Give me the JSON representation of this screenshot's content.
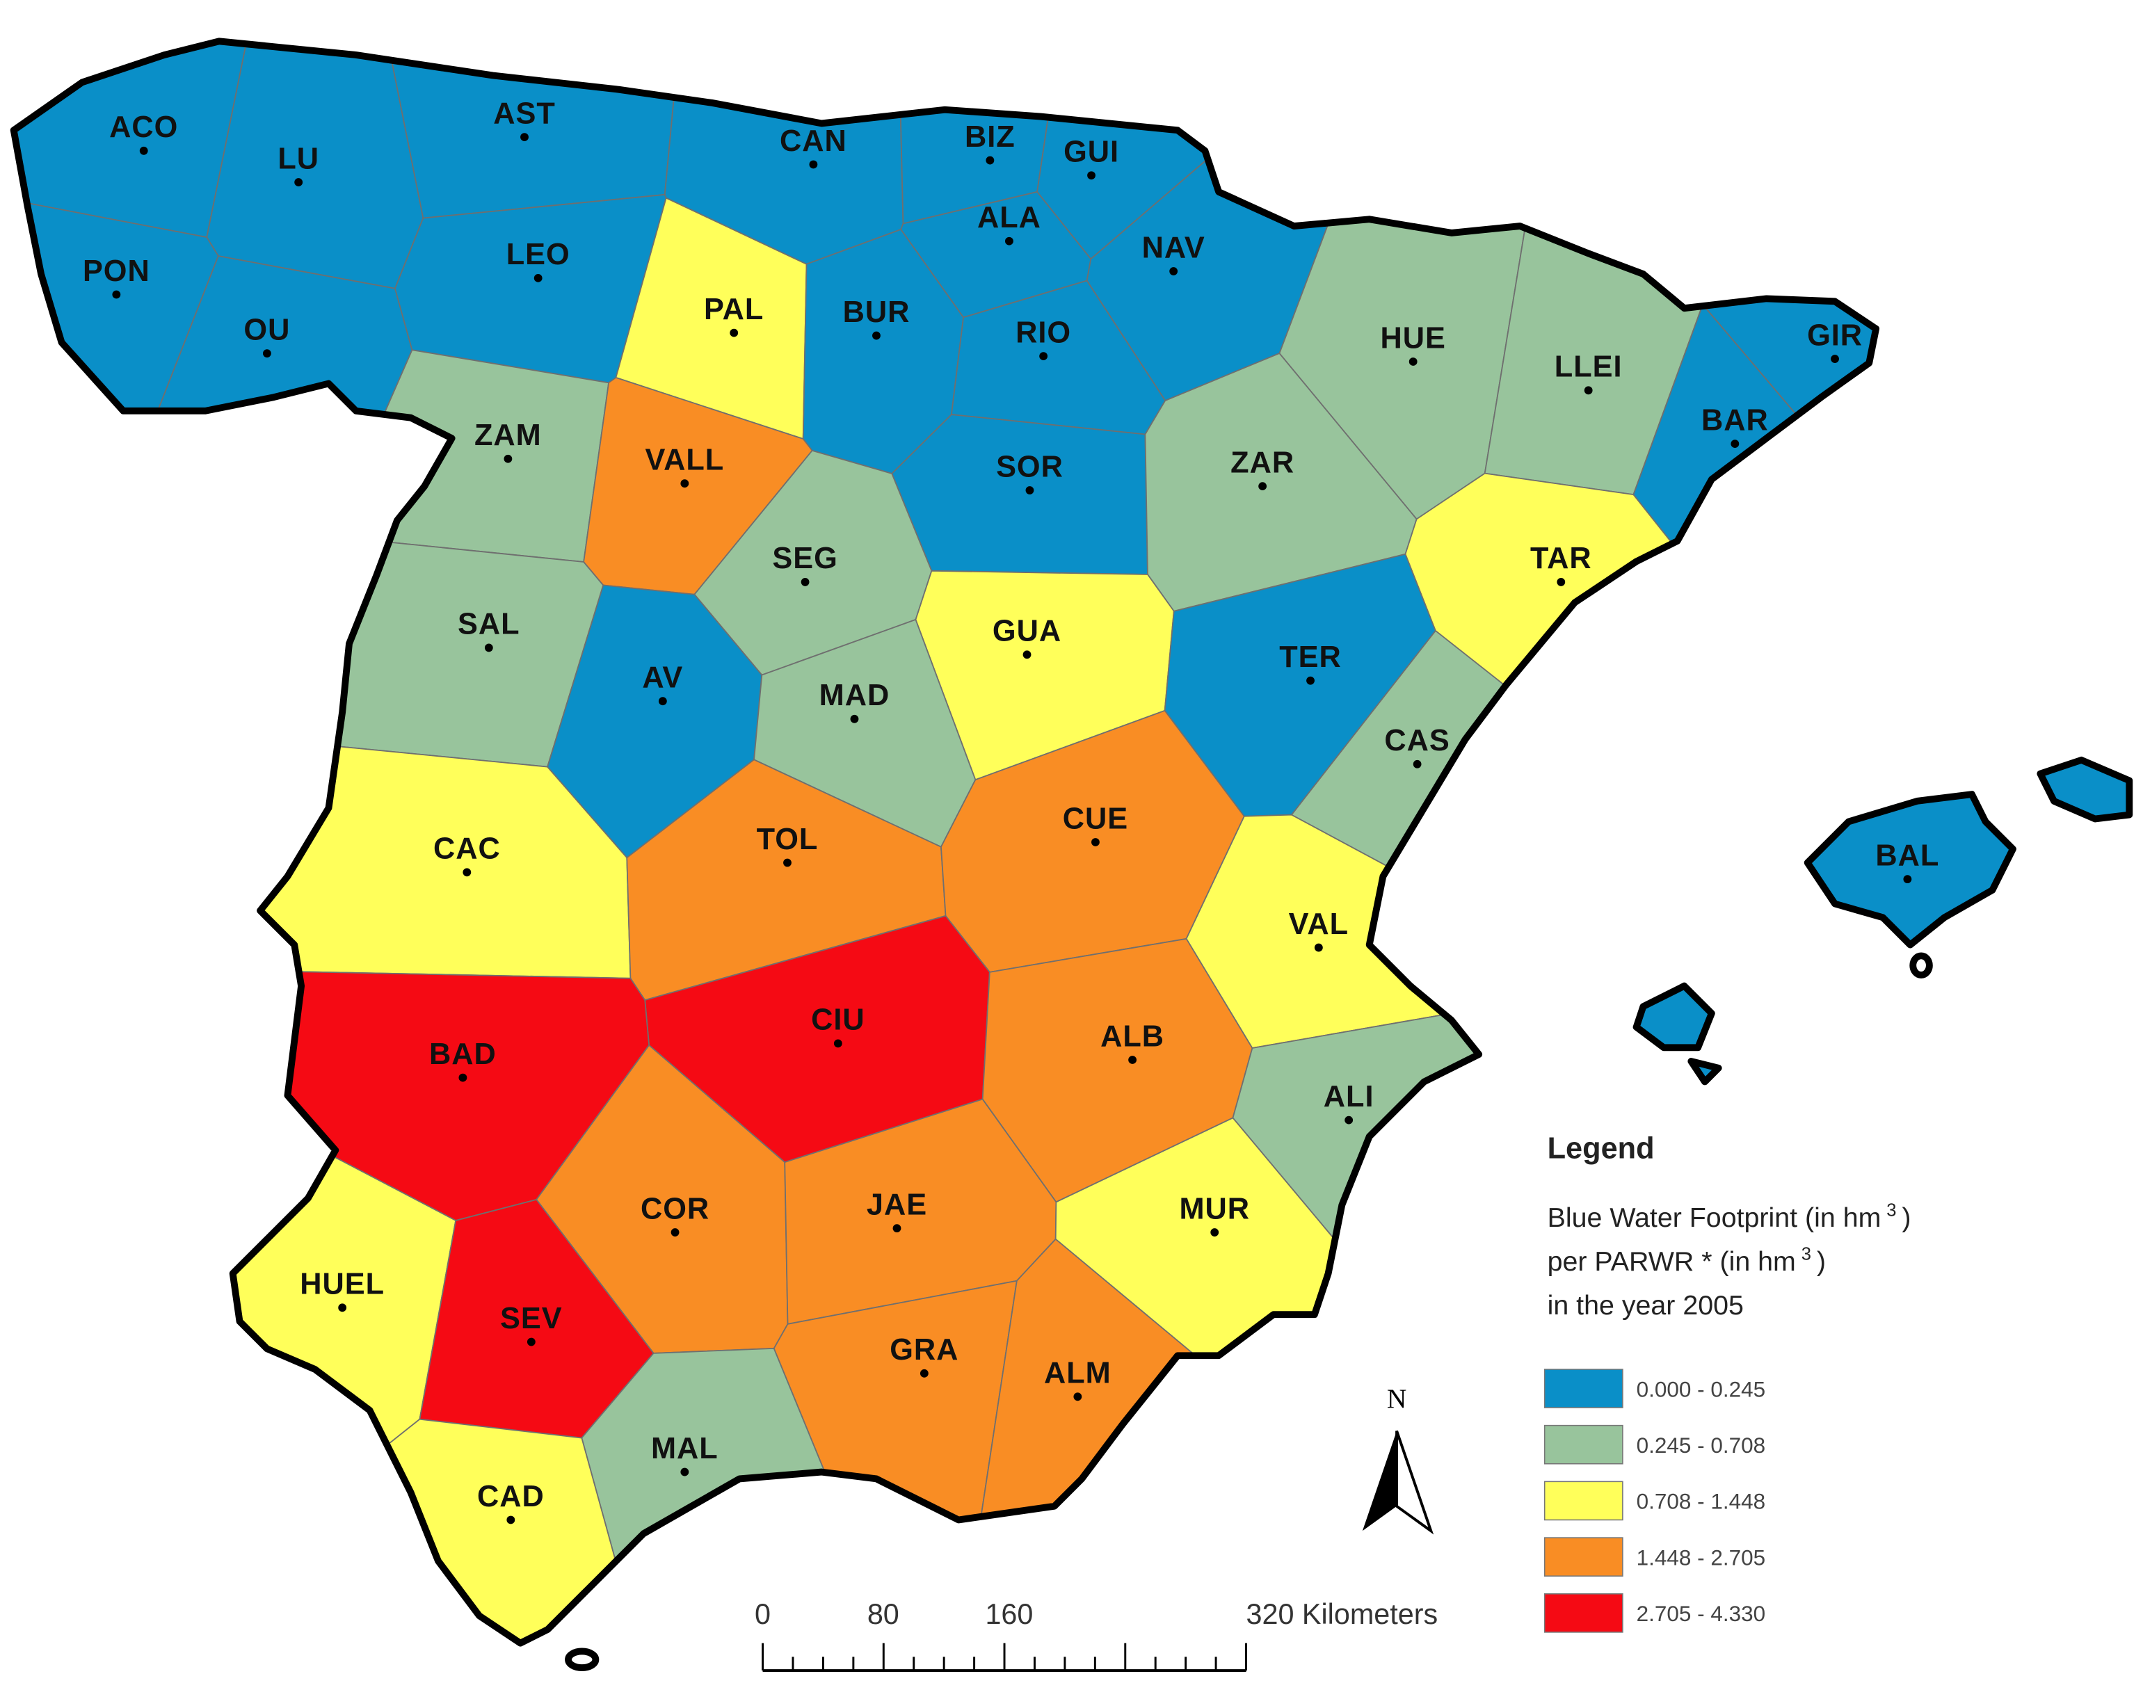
{
  "map": {
    "provinces": [
      {
        "label": "ACO",
        "class": 0
      },
      {
        "label": "LU",
        "class": 0
      },
      {
        "label": "AST",
        "class": 0
      },
      {
        "label": "CAN",
        "class": 0
      },
      {
        "label": "BIZ",
        "class": 0
      },
      {
        "label": "GUI",
        "class": 0
      },
      {
        "label": "ALA",
        "class": 0
      },
      {
        "label": "NAV",
        "class": 0
      },
      {
        "label": "PON",
        "class": 0
      },
      {
        "label": "OU",
        "class": 0
      },
      {
        "label": "LEO",
        "class": 0
      },
      {
        "label": "PAL",
        "class": 2
      },
      {
        "label": "BUR",
        "class": 0
      },
      {
        "label": "RIO",
        "class": 0
      },
      {
        "label": "HUE",
        "class": 1
      },
      {
        "label": "LLEI",
        "class": 1
      },
      {
        "label": "GIR",
        "class": 0
      },
      {
        "label": "BAR",
        "class": 0
      },
      {
        "label": "ZAM",
        "class": 1
      },
      {
        "label": "VALL",
        "class": 3
      },
      {
        "label": "SOR",
        "class": 0
      },
      {
        "label": "ZAR",
        "class": 1
      },
      {
        "label": "TAR",
        "class": 2
      },
      {
        "label": "SEG",
        "class": 1
      },
      {
        "label": "GUA",
        "class": 2
      },
      {
        "label": "SAL",
        "class": 1
      },
      {
        "label": "AV",
        "class": 0
      },
      {
        "label": "TER",
        "class": 0
      },
      {
        "label": "MAD",
        "class": 1
      },
      {
        "label": "CAS",
        "class": 1
      },
      {
        "label": "BAL",
        "class": 0
      },
      {
        "label": "CAC",
        "class": 2
      },
      {
        "label": "TOL",
        "class": 3
      },
      {
        "label": "CUE",
        "class": 3
      },
      {
        "label": "VAL",
        "class": 2
      },
      {
        "label": "CIU",
        "class": 4
      },
      {
        "label": "BAD",
        "class": 4
      },
      {
        "label": "ALB",
        "class": 3
      },
      {
        "label": "ALI",
        "class": 1
      },
      {
        "label": "COR",
        "class": 3
      },
      {
        "label": "JAE",
        "class": 3
      },
      {
        "label": "MUR",
        "class": 2
      },
      {
        "label": "HUEL",
        "class": 2
      },
      {
        "label": "SEV",
        "class": 4
      },
      {
        "label": "GRA",
        "class": 3
      },
      {
        "label": "ALM",
        "class": 3
      },
      {
        "label": "MAL",
        "class": 1
      },
      {
        "label": "CAD",
        "class": 2
      }
    ],
    "legend": {
      "title": "Legend",
      "lines": [
        {
          "text": "Blue Water Footprint (in hm",
          "sup": "3",
          "after": ")"
        },
        {
          "text": "per   PARWR  *  (in hm",
          "sup": "3",
          "after": ")"
        },
        {
          "text": "in the year 2005"
        }
      ],
      "items": [
        {
          "label": "0.000 - 0.245",
          "color": "#0a8fc8"
        },
        {
          "label": "0.245 - 0.708",
          "color": "#98c49c"
        },
        {
          "label": "0.708 - 1.448",
          "color": "#ffff5a"
        },
        {
          "label": "1.448 - 2.705",
          "color": "#f98d24"
        },
        {
          "label": "2.705 - 4.330",
          "color": "#f50a14"
        }
      ]
    },
    "north": "N",
    "scale_bar": [
      "0",
      "80",
      "160",
      "320 Kilometers"
    ]
  }
}
